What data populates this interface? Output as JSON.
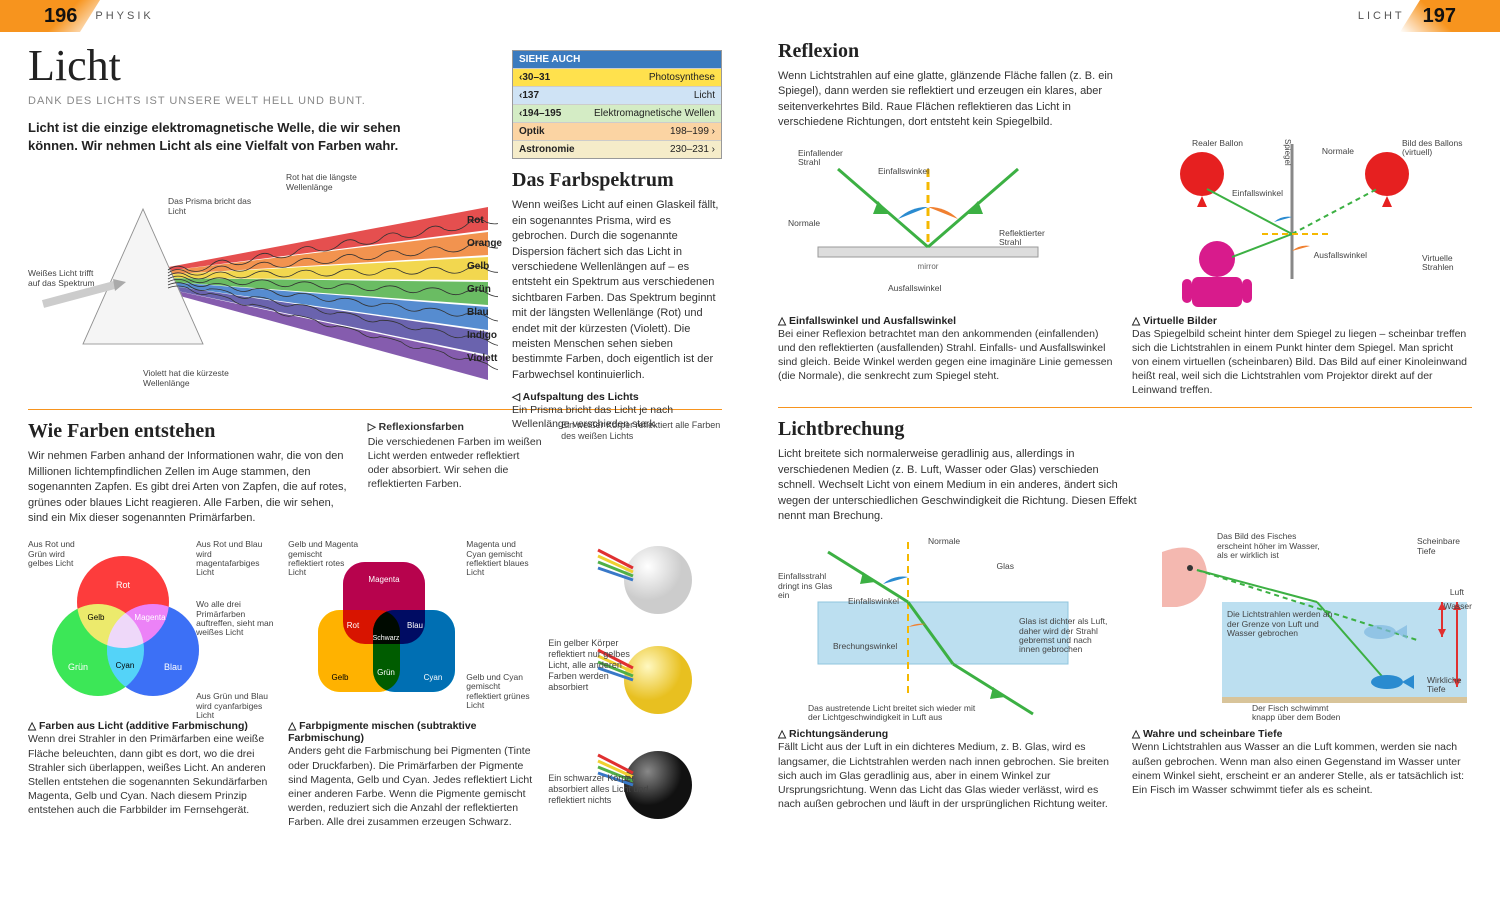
{
  "left": {
    "pageNum": "196",
    "section": "PHYSIK",
    "title": "Licht",
    "subtitle": "DANK DES LICHTS IST UNSERE WELT HELL UND BUNT.",
    "intro": "Licht ist die einzige elektromagnetische Welle, die wir sehen können. Wir nehmen Licht als eine Vielfalt von Farben wahr.",
    "seeAlso": {
      "header": "SIEHE AUCH",
      "rows": [
        {
          "ref": "‹30–31",
          "txt": "Photosynthese",
          "cls": "sa-y"
        },
        {
          "ref": "‹137",
          "txt": "Licht",
          "cls": "sa-b"
        },
        {
          "ref": "‹194–195",
          "txt": "Elektromagnetische Wellen",
          "cls": "sa-g"
        },
        {
          "ref": "Optik",
          "txt": "198–199 ›",
          "cls": "sa-o"
        },
        {
          "ref": "Astronomie",
          "txt": "230–231 ›",
          "cls": "sa-t"
        }
      ]
    },
    "prism": {
      "lbl_white": "Weißes Licht trifft auf das Spektrum",
      "lbl_bricht": "Das Prisma bricht das Licht",
      "lbl_rot": "Rot hat die längste Wellenlänge",
      "lbl_violett": "Violett hat die kürzeste Wellenlänge",
      "colors": [
        "Rot",
        "Orange",
        "Gelb",
        "Grün",
        "Blau",
        "Indigo",
        "Violett"
      ],
      "colorHex": [
        "#e03030",
        "#f08030",
        "#f0d030",
        "#50b048",
        "#3878c8",
        "#5048a0",
        "#7040a0"
      ]
    },
    "spectrum": {
      "h": "Das Farbspektrum",
      "p": "Wenn weißes Licht auf einen Glaskeil fällt, ein sogenanntes Prisma, wird es gebrochen. Durch die sogenannte Dispersion fächert sich das Licht in verschiedene Wellenlängen auf – es entsteht ein Spektrum aus verschiedenen sichtbaren Farben. Das Spektrum beginnt mit der längsten Wellenlänge (Rot) und endet mit der kürzesten (Violett). Die meisten Menschen sehen sieben bestimmte Farben, doch eigentlich ist der Farbwechsel kontinuierlich.",
      "cap_t": "Aufspaltung des Lichts",
      "cap_p": "Ein Prisma bricht das Licht je nach Wellenlänge verschieden stark."
    },
    "howColors": {
      "h": "Wie Farben entstehen",
      "p": "Wir nehmen Farben anhand der Informationen wahr, die von den Millionen lichtempfindlichen Zellen im Auge stammen, den sogenannten Zapfen. Es gibt drei Arten von Zapfen, die auf rotes, grünes oder blaues Licht reagieren. Alle Farben, die wir sehen, sind ein Mix dieser sogenannten Primärfarben."
    },
    "additive": {
      "labels": {
        "rg": "Aus Rot und Grün wird gelbes Licht",
        "rb": "Aus Rot und Blau wird magentafarbiges Licht",
        "all": "Wo alle drei Primärfarben auftreffen, sieht man weißes Licht",
        "gb": "Aus Grün und Blau wird cyanfarbiges Licht"
      },
      "names": {
        "r": "Rot",
        "g": "Grün",
        "b": "Blau",
        "y": "Gelb",
        "m": "Magenta",
        "c": "Cyan"
      },
      "cap_t": "Farben aus Licht (additive Farbmischung)",
      "cap_p": "Wenn drei Strahler in den Primärfarben eine weiße Fläche beleuchten, dann gibt es dort, wo die drei Strahler sich überlappen, weißes Licht. An anderen Stellen entstehen die sogenannten Sekundärfarben Magenta, Gelb und Cyan. Nach diesem Prinzip entstehen auch die Farbbilder im Fernsehgerät."
    },
    "subtractive": {
      "labels": {
        "ym": "Gelb und Magenta gemischt reflektiert rotes Licht",
        "mc": "Magenta und Cyan gemischt reflektiert blaues Licht",
        "yc": "Gelb und Cyan gemischt reflektiert grünes Licht"
      },
      "names": {
        "m": "Magenta",
        "y": "Gelb",
        "c": "Cyan",
        "r": "Rot",
        "g": "Grün",
        "b": "Blau",
        "k": "Schwarz"
      },
      "cap_t": "Farbpigmente mischen (subtraktive Farbmischung)",
      "cap_p": "Anders geht die Farbmischung bei Pigmenten (Tinte oder Druckfarben). Die Primärfarben der Pigmente sind Magenta, Gelb und Cyan. Jedes reflektiert Licht einer anderen Farbe. Wenn die Pigmente gemischt werden, reduziert sich die Anzahl der reflektierten Farben. Alle drei zusammen erzeugen Schwarz."
    },
    "reflexColors": {
      "h": "▷ Reflexionsfarben",
      "p": "Die verschiedenen Farben im weißen Licht werden entweder reflektiert oder absorbiert. Wir sehen die reflektierten Farben.",
      "l_white": "Ein weißer Körper reflektiert alle Farben des weißen Lichts",
      "l_yellow": "Ein gelber Körper reflektiert nur gelbes Licht, alle anderen Farben werden absorbiert",
      "l_black": "Ein schwarzer Körper absorbiert alles Licht und reflektiert nichts"
    }
  },
  "right": {
    "pageNum": "197",
    "section": "LICHT",
    "reflexion": {
      "h": "Reflexion",
      "p": "Wenn Lichtstrahlen auf eine glatte, glänzende Fläche fallen (z. B. ein Spiegel), dann werden sie reflektiert und erzeugen ein klares, aber seitenverkehrtes Bild. Raue Flächen reflektieren das Licht in verschiedene Richtungen, dort entsteht kein Spiegelbild.",
      "d1": {
        "ein": "Einfallender Strahl",
        "einW": "Einfallswinkel",
        "norm": "Normale",
        "mirror": "mirror",
        "ausW": "Ausfallswinkel",
        "ref": "Reflektierter Strahl"
      },
      "d2": {
        "real": "Realer Ballon",
        "ein": "Einfallswinkel",
        "sp": "Spiegel",
        "norm": "Normale",
        "virt": "Bild des Ballons (virtuell)",
        "aus": "Ausfallswinkel",
        "vs": "Virtuelle Strahlen"
      },
      "c1_t": "Einfallswinkel und Ausfallswinkel",
      "c1_p": "Bei einer Reflexion betrachtet man den ankommenden (einfallenden) und den reflektierten (ausfallenden) Strahl. Einfalls- und Ausfallswinkel sind gleich. Beide Winkel werden gegen eine imaginäre Linie gemessen (die Normale), die senkrecht zum Spiegel steht.",
      "c2_t": "Virtuelle Bilder",
      "c2_p": "Das Spiegelbild scheint hinter dem Spiegel zu liegen – scheinbar treffen sich die Lichtstrahlen in einem Punkt hinter dem Spiegel. Man spricht von einem virtuellen (scheinbaren) Bild. Das Bild auf einer Kinoleinwand heißt real, weil sich die Lichtstrahlen vom Projektor direkt auf der Leinwand treffen."
    },
    "brechung": {
      "h": "Lichtbrechung",
      "p": "Licht breitete sich normalerweise geradlinig aus, allerdings in verschiedenen Medien (z. B. Luft, Wasser oder Glas) verschieden schnell. Wechselt Licht von einem Medium in ein anderes, ändert sich wegen der unterschiedlichen Geschwindigkeit die Richtung. Diesen Effekt nennt man Brechung.",
      "d1": {
        "ein": "Einfallsstrahl dringt ins Glas ein",
        "norm": "Normale",
        "glas": "Glas",
        "einW": "Einfallswinkel",
        "brW": "Brechungswinkel",
        "dichter": "Glas ist dichter als Luft, daher wird der Strahl gebremst und nach innen gebrochen",
        "aus": "Das austretende Licht breitet sich wieder mit der Lichtgeschwindigkeit in Luft aus"
      },
      "d2": {
        "bild": "Das Bild des Fisches erscheint höher im Wasser, als er wirklich ist",
        "schein": "Scheinbare Tiefe",
        "luft": "Luft",
        "wasser": "Wasser",
        "grenze": "Die Lichtstrahlen werden an der Grenze von Luft und Wasser gebrochen",
        "fisch": "Der Fisch schwimmt knapp über dem Boden",
        "wirk": "Wirkliche Tiefe"
      },
      "c1_t": "Richtungsänderung",
      "c1_p": "Fällt Licht aus der Luft in ein dichteres Medium, z. B. Glas, wird es langsamer, die Lichtstrahlen werden nach innen gebrochen. Sie breiten sich auch im Glas geradlinig aus, aber in einem Winkel zur Ursprungsrichtung. Wenn das Licht das Glas wieder verlässt, wird es nach außen gebrochen und läuft in der ursprünglichen Richtung weiter.",
      "c2_t": "Wahre und scheinbare Tiefe",
      "c2_p": "Wenn Lichtstrahlen aus Wasser an die Luft kommen, werden sie nach außen gebrochen. Wenn man also einen Gegenstand im Wasser unter einem Winkel sieht, erscheint er an anderer Stelle, als er tatsächlich ist: Ein Fisch im Wasser schwimmt tiefer als es scheint."
    }
  }
}
